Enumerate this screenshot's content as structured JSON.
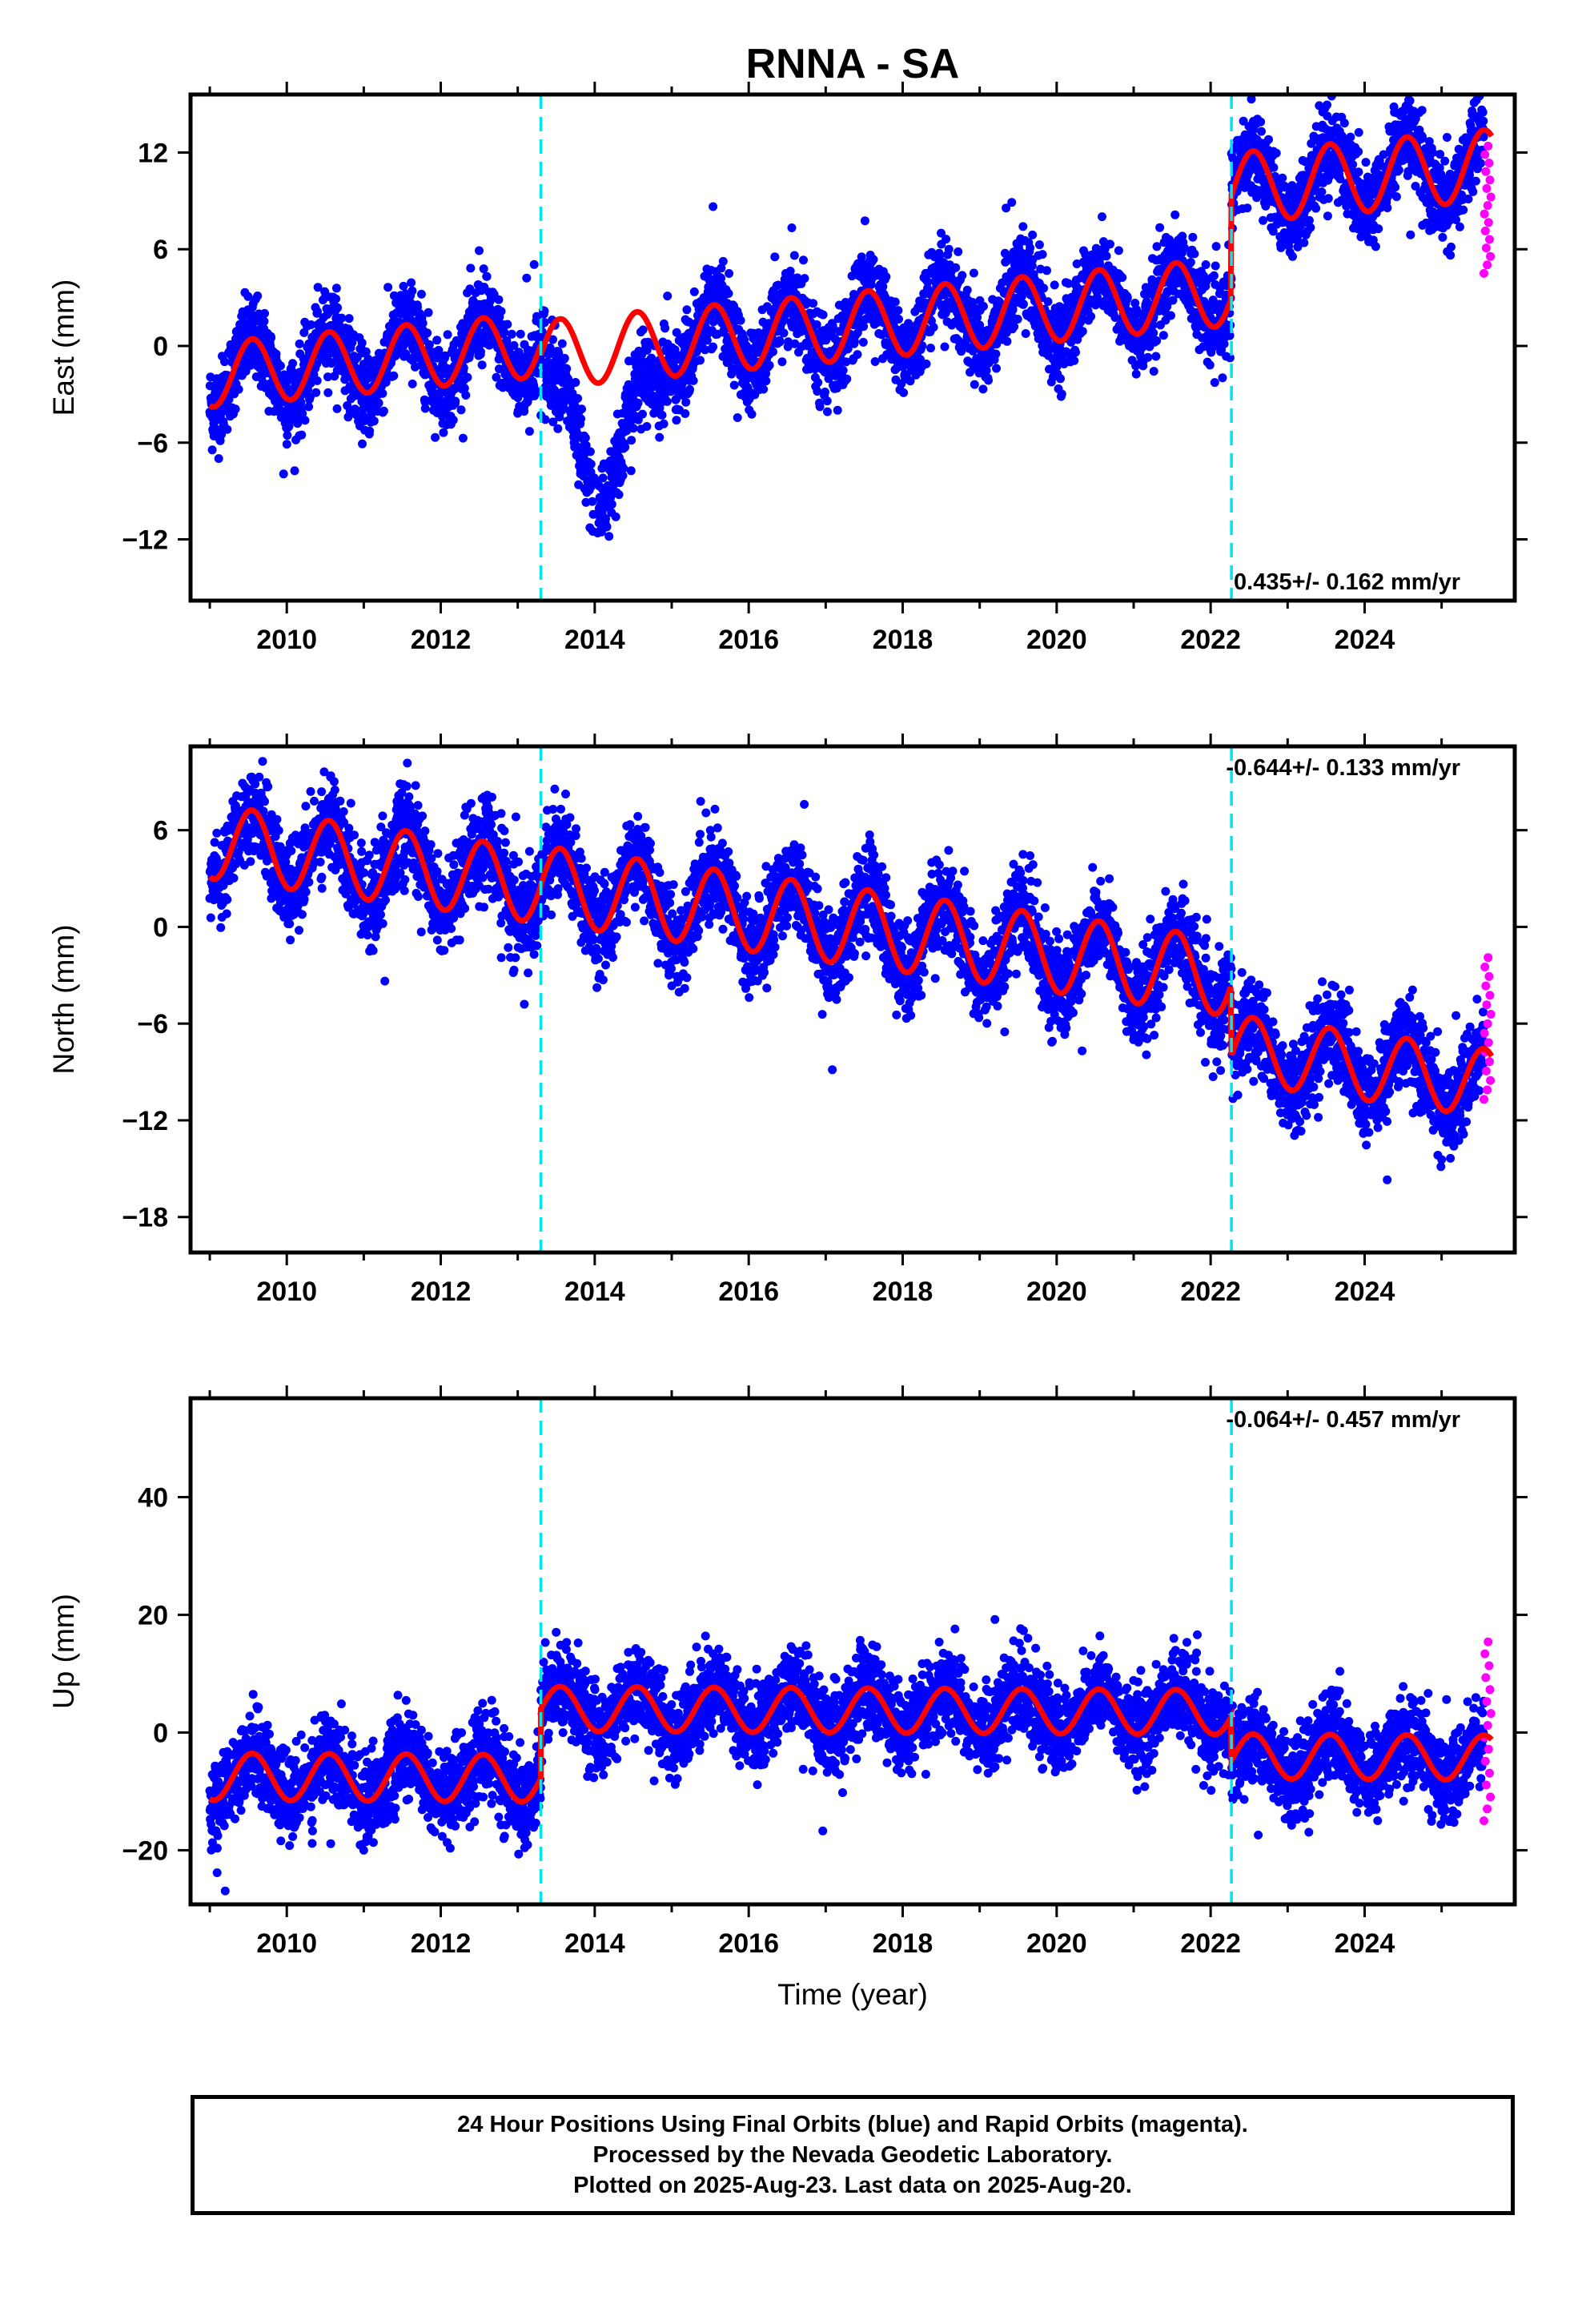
{
  "title": "RNNA - SA",
  "footer": {
    "line1": "24 Hour Positions Using Final Orbits (blue) and Rapid Orbits (magenta).",
    "line2": "Processed by the Nevada Geodetic Laboratory.",
    "line3": "Plotted on 2025-Aug-23. Last data on 2025-Aug-20."
  },
  "colors": {
    "final_orbits": "#0000ff",
    "rapid_orbits": "#ff00ff",
    "model": "#ff0000",
    "event_lines": "#00e5ee",
    "frame": "#000000"
  },
  "chart_data": [
    {
      "type": "scatter",
      "panel": "east",
      "ylabel": "East (mm)",
      "xlabel": "",
      "xlim": [
        2008.75,
        2025.95
      ],
      "ylim": [
        -15.8,
        15.6
      ],
      "xticks": [
        2010,
        2012,
        2014,
        2016,
        2018,
        2020,
        2022,
        2024
      ],
      "yticks": [
        -12,
        -6,
        0,
        6,
        12
      ],
      "grid": false,
      "rate_label": "0.435+/- 0.162 mm/yr",
      "rate_position": "bottom-right",
      "event_lines_x": [
        2013.3,
        2022.27
      ],
      "trend": {
        "rate": 0.435,
        "segments": [
          {
            "start": 2009.0,
            "end": 2013.3,
            "offset": -1.8,
            "amp": 2.0,
            "phase_year": 2009.55
          },
          {
            "start": 2013.3,
            "end": 2022.27,
            "offset": -2.4,
            "amp": 2.1,
            "phase_year": 2009.55
          },
          {
            "start": 2022.27,
            "end": 2025.65,
            "offset": 4.0,
            "amp": 2.2,
            "phase_year": 2009.55
          }
        ]
      },
      "scatter_spread": 1.3,
      "transient": {
        "start": 2013.35,
        "end": 2014.9,
        "depth": -7.5,
        "peak": 2014.1
      },
      "rapid_points": {
        "x_start": 2025.55,
        "x_end": 2025.64,
        "ymin": 4.5,
        "ymax": 12.4
      }
    },
    {
      "type": "scatter",
      "panel": "north",
      "ylabel": "North (mm)",
      "xlabel": "",
      "xlim": [
        2008.75,
        2025.95
      ],
      "ylim": [
        -20.2,
        11.2
      ],
      "xticks": [
        2010,
        2012,
        2014,
        2016,
        2018,
        2020,
        2022,
        2024
      ],
      "yticks": [
        -18,
        -12,
        -6,
        0,
        6
      ],
      "grid": false,
      "rate_label": "-0.644+/- 0.133 mm/yr",
      "rate_position": "top-right",
      "event_lines_x": [
        2013.3,
        2022.27
      ],
      "trend": {
        "rate": -0.644,
        "segments": [
          {
            "start": 2009.0,
            "end": 2013.3,
            "offset": 5.3,
            "amp": 2.3,
            "phase_year": 2009.55
          },
          {
            "start": 2013.3,
            "end": 2022.27,
            "offset": 5.4,
            "amp": 2.4,
            "phase_year": 2009.55
          },
          {
            "start": 2022.27,
            "end": 2025.65,
            "offset": 1.0,
            "amp": 2.1,
            "phase_year": 2009.55
          }
        ]
      },
      "scatter_spread": 1.4,
      "rapid_points": {
        "x_start": 2025.55,
        "x_end": 2025.64,
        "ymin": -10.7,
        "ymax": -1.9
      }
    },
    {
      "type": "scatter",
      "panel": "up",
      "ylabel": "Up (mm)",
      "xlabel": "Time (year)",
      "xlim": [
        2008.75,
        2025.95
      ],
      "ylim": [
        -29.2,
        56.8
      ],
      "xticks": [
        2010,
        2012,
        2014,
        2016,
        2018,
        2020,
        2022,
        2024
      ],
      "yticks": [
        -20,
        0,
        20,
        40
      ],
      "grid": false,
      "rate_label": "-0.064+/- 0.457 mm/yr",
      "rate_position": "top-right",
      "event_lines_x": [
        2013.3,
        2022.27
      ],
      "trend": {
        "rate": -0.064,
        "segments": [
          {
            "start": 2009.0,
            "end": 2013.3,
            "offset": -7.5,
            "amp": 4.0,
            "phase_year": 2009.55
          },
          {
            "start": 2013.3,
            "end": 2022.27,
            "offset": 4.3,
            "amp": 3.8,
            "phase_year": 2009.55
          },
          {
            "start": 2022.27,
            "end": 2025.65,
            "offset": -3.2,
            "amp": 3.8,
            "phase_year": 2009.55
          }
        ]
      },
      "scatter_spread": 3.6,
      "rapid_points": {
        "x_start": 2025.55,
        "x_end": 2025.64,
        "ymin": -15.0,
        "ymax": 15.4
      }
    }
  ]
}
